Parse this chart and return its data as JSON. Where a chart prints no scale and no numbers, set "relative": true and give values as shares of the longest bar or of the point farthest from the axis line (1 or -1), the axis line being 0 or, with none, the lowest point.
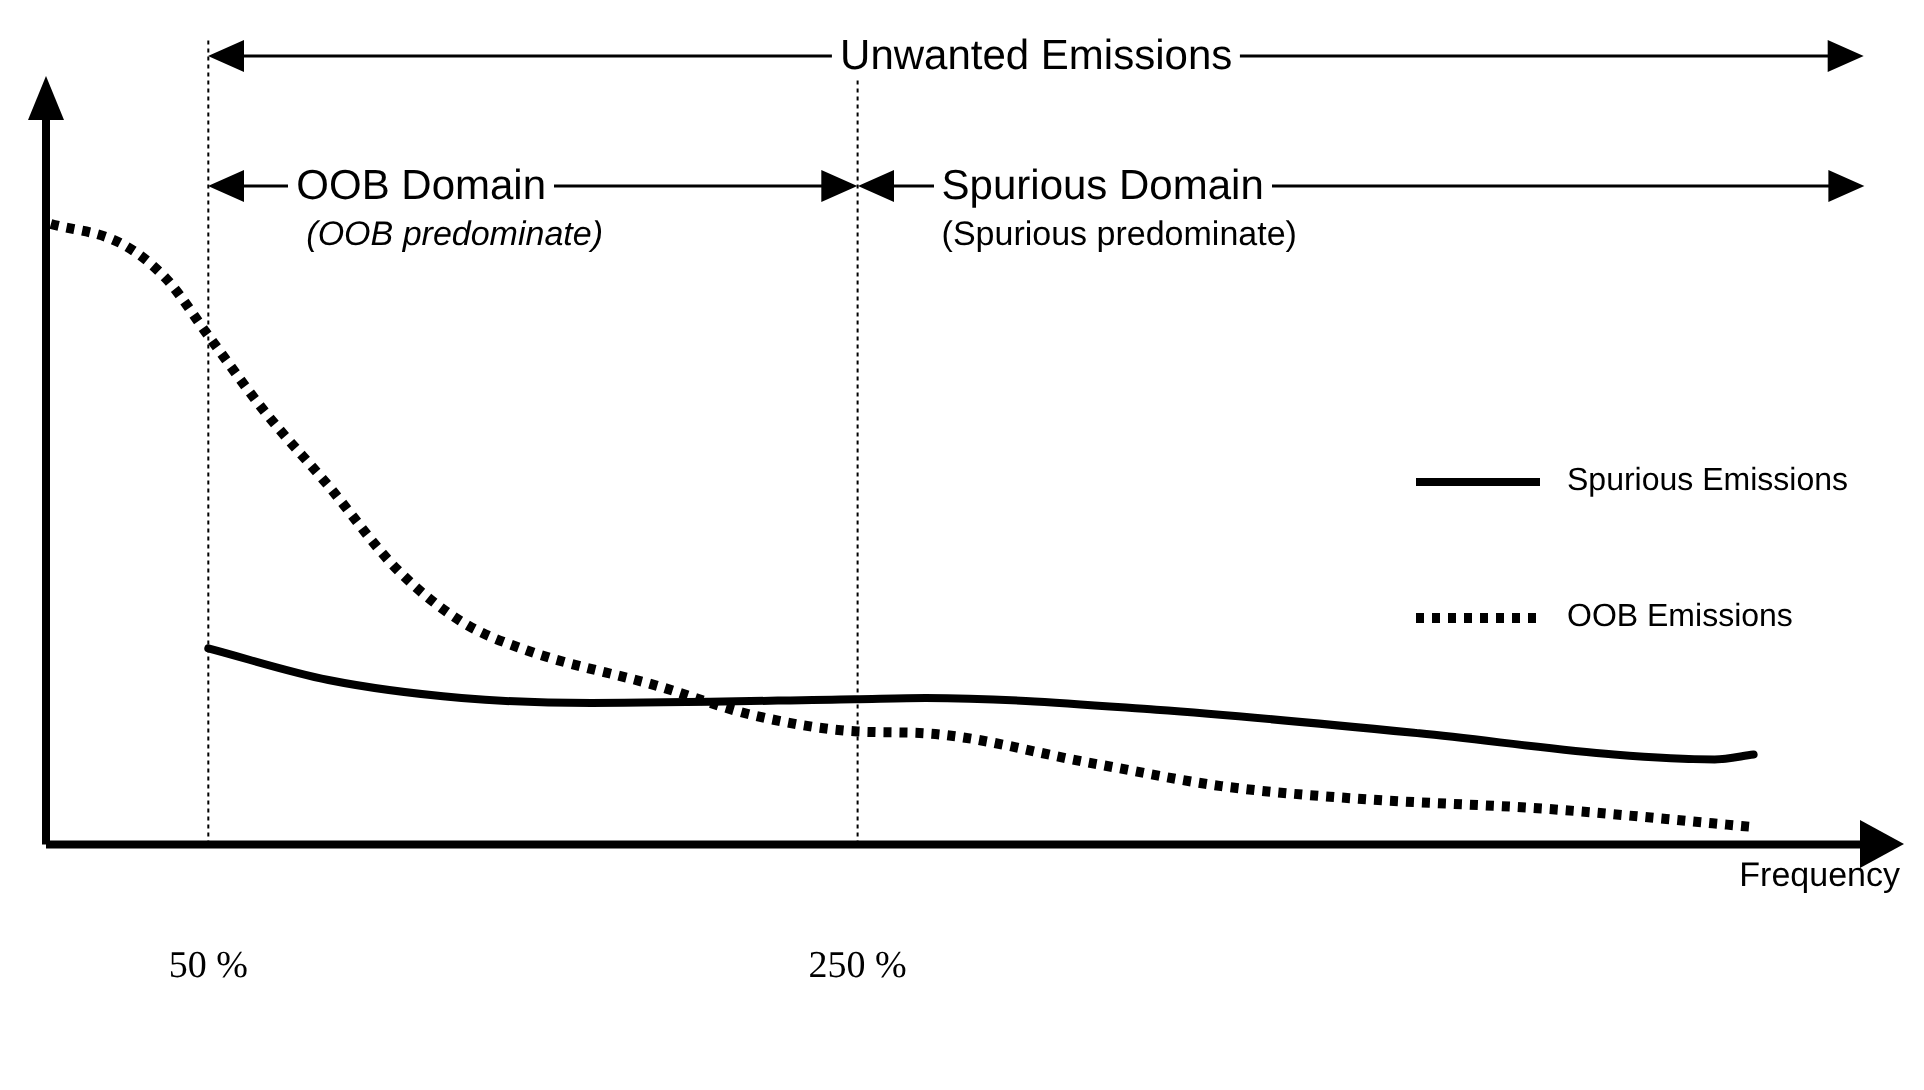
{
  "chart_data": {
    "type": "line",
    "relative": true,
    "xlabel": "Frequency",
    "xlim": [
      0,
      560
    ],
    "xticks": [
      {
        "value": 50,
        "label": "50 %"
      },
      {
        "value": 250,
        "label": "250 %"
      }
    ],
    "marker": "none",
    "legend": "right",
    "grid": false,
    "series": [
      {
        "name": "Spurious Emissions",
        "color": "#000000",
        "line_style": "solid",
        "x": [
          50,
          87,
          128,
          168,
          249,
          271,
          342,
          423,
          483,
          514,
          526
        ],
        "values": [
          0.316,
          0.265,
          0.236,
          0.228,
          0.234,
          0.236,
          0.217,
          0.179,
          0.145,
          0.137,
          0.145
        ]
      },
      {
        "name": "OOB Emissions",
        "color": "#000000",
        "line_style": "dotted",
        "x": [
          1.5,
          23,
          37,
          50,
          67,
          87,
          108,
          128,
          148,
          188,
          218,
          250,
          271,
          322,
          362,
          403,
          463,
          526
        ],
        "values": [
          1.0,
          0.969,
          0.912,
          0.82,
          0.7,
          0.578,
          0.444,
          0.359,
          0.313,
          0.256,
          0.208,
          0.182,
          0.179,
          0.131,
          0.094,
          0.074,
          0.057,
          0.028
        ]
      }
    ],
    "ref_lines": [
      {
        "axis": "x",
        "value": 50,
        "line_style": "dotted",
        "color": "#000000"
      },
      {
        "axis": "x",
        "value": 250,
        "line_style": "dotted",
        "color": "#000000"
      }
    ],
    "annotations": [
      "Unwanted Emissions",
      "OOB Domain",
      "(OOB predominate)",
      "Spurious Domain",
      "(Spurious predominate)"
    ]
  }
}
